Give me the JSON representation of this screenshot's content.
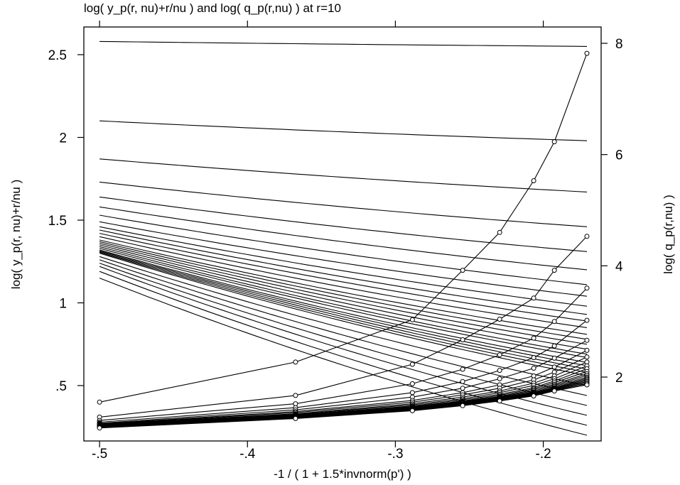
{
  "chart_data": {
    "type": "line",
    "title": "log( y_p(r, nu)+r/nu ) and log( q_p(r,nu) ) at r=10",
    "xlabel": "-1 / ( 1 + 1.5*invnorm(p') )",
    "ylabel_left": "log( y_p(r, nu)+r/nu )",
    "ylabel_right": "log( q_p(r,nu) )",
    "xlim": [
      -0.5,
      -0.17
    ],
    "ylim_left": [
      0.2,
      2.62
    ],
    "ylim_right": [
      0.95,
      8.16
    ],
    "x_ticks": [
      {
        "v": -0.5,
        "label": "-.5"
      },
      {
        "v": -0.4,
        "label": "-.4"
      },
      {
        "v": -0.3,
        "label": "-.3"
      },
      {
        "v": -0.2,
        "label": "-.2"
      }
    ],
    "y_left_ticks": [
      {
        "v": 0.5,
        "label": ".5"
      },
      {
        "v": 1.0,
        "label": "1"
      },
      {
        "v": 1.5,
        "label": "1.5"
      },
      {
        "v": 2.0,
        "label": "2"
      },
      {
        "v": 2.5,
        "label": "2.5"
      }
    ],
    "y_right_ticks": [
      {
        "v": 2,
        "label": "2"
      },
      {
        "v": 4,
        "label": "4"
      },
      {
        "v": 6,
        "label": "6"
      },
      {
        "v": 8,
        "label": "8"
      }
    ],
    "grid": false,
    "legend": "none",
    "line_color": "#000000",
    "y_series_axis": "left",
    "y_series_markers": false,
    "y_series": [
      {
        "start": 2.58,
        "end": 2.55
      },
      {
        "start": 2.1,
        "end": 1.98
      },
      {
        "start": 1.87,
        "end": 1.67
      },
      {
        "start": 1.73,
        "end": 1.46
      },
      {
        "start": 1.64,
        "end": 1.31
      },
      {
        "start": 1.58,
        "end": 1.2
      },
      {
        "start": 1.53,
        "end": 1.11
      },
      {
        "start": 1.49,
        "end": 1.04
      },
      {
        "start": 1.46,
        "end": 0.98
      },
      {
        "start": 1.44,
        "end": 0.93
      },
      {
        "start": 1.42,
        "end": 0.89
      },
      {
        "start": 1.4,
        "end": 0.85
      },
      {
        "start": 1.38,
        "end": 0.81
      },
      {
        "start": 1.37,
        "end": 0.78
      },
      {
        "start": 1.36,
        "end": 0.75
      },
      {
        "start": 1.35,
        "end": 0.72
      },
      {
        "start": 1.34,
        "end": 0.69
      },
      {
        "start": 1.33,
        "end": 0.67
      },
      {
        "start": 1.32,
        "end": 0.64
      },
      {
        "start": 1.315,
        "end": 0.62
      },
      {
        "start": 1.31,
        "end": 0.6
      },
      {
        "start": 1.305,
        "end": 0.58
      },
      {
        "start": 1.3,
        "end": 0.56
      },
      {
        "start": 1.28,
        "end": 0.5
      },
      {
        "start": 1.26,
        "end": 0.44
      },
      {
        "start": 1.24,
        "end": 0.38
      },
      {
        "start": 1.22,
        "end": 0.32
      },
      {
        "start": 1.19,
        "end": 0.26
      },
      {
        "start": 1.15,
        "end": 0.2
      }
    ],
    "q_series_axis": "right",
    "q_series_markers": true,
    "q_x": [
      -0.5,
      -0.3675,
      -0.2885,
      -0.2545,
      -0.2295,
      -0.2065,
      -0.1925,
      -0.1705
    ],
    "q_series": [
      {
        "values": [
          1.55,
          2.27,
          3.03,
          3.92,
          4.6,
          5.53,
          6.23,
          7.82
        ]
      },
      {
        "values": [
          1.28,
          1.67,
          2.23,
          2.67,
          3.04,
          3.42,
          3.92,
          4.53
        ]
      },
      {
        "values": [
          1.22,
          1.52,
          1.88,
          2.14,
          2.4,
          2.7,
          3.0,
          3.6
        ]
      },
      {
        "values": [
          1.19,
          1.45,
          1.72,
          1.92,
          2.12,
          2.35,
          2.56,
          3.02
        ]
      },
      {
        "values": [
          1.17,
          1.41,
          1.64,
          1.8,
          1.97,
          2.16,
          2.34,
          2.66
        ]
      },
      {
        "values": [
          1.16,
          1.38,
          1.58,
          1.72,
          1.86,
          2.02,
          2.18,
          2.48
        ]
      },
      {
        "values": [
          1.155,
          1.36,
          1.55,
          1.68,
          1.8,
          1.95,
          2.09,
          2.36
        ]
      },
      {
        "values": [
          1.15,
          1.34,
          1.52,
          1.64,
          1.75,
          1.89,
          2.02,
          2.27
        ]
      },
      {
        "values": [
          1.145,
          1.33,
          1.5,
          1.61,
          1.72,
          1.85,
          1.97,
          2.2
        ]
      },
      {
        "values": [
          1.14,
          1.32,
          1.48,
          1.59,
          1.69,
          1.81,
          1.93,
          2.15
        ]
      },
      {
        "values": [
          1.135,
          1.31,
          1.47,
          1.57,
          1.67,
          1.79,
          1.9,
          2.1
        ]
      },
      {
        "values": [
          1.13,
          1.3,
          1.46,
          1.56,
          1.65,
          1.77,
          1.87,
          2.06
        ]
      },
      {
        "values": [
          1.125,
          1.295,
          1.45,
          1.55,
          1.64,
          1.75,
          1.85,
          2.03
        ]
      },
      {
        "values": [
          1.12,
          1.29,
          1.44,
          1.54,
          1.63,
          1.73,
          1.83,
          2.0
        ]
      },
      {
        "values": [
          1.115,
          1.285,
          1.43,
          1.53,
          1.62,
          1.72,
          1.81,
          1.98
        ]
      },
      {
        "values": [
          1.11,
          1.28,
          1.425,
          1.52,
          1.61,
          1.71,
          1.8,
          1.96
        ]
      },
      {
        "values": [
          1.105,
          1.275,
          1.42,
          1.51,
          1.6,
          1.7,
          1.79,
          1.94
        ]
      },
      {
        "values": [
          1.1,
          1.27,
          1.41,
          1.5,
          1.59,
          1.69,
          1.78,
          1.92
        ]
      },
      {
        "values": [
          1.095,
          1.265,
          1.405,
          1.495,
          1.58,
          1.68,
          1.77,
          1.9
        ]
      },
      {
        "values": [
          1.09,
          1.26,
          1.4,
          1.49,
          1.575,
          1.67,
          1.76,
          1.88
        ]
      },
      {
        "values": [
          1.085,
          1.255,
          1.395,
          1.485,
          1.57,
          1.66,
          1.75,
          1.86
        ]
      }
    ]
  }
}
